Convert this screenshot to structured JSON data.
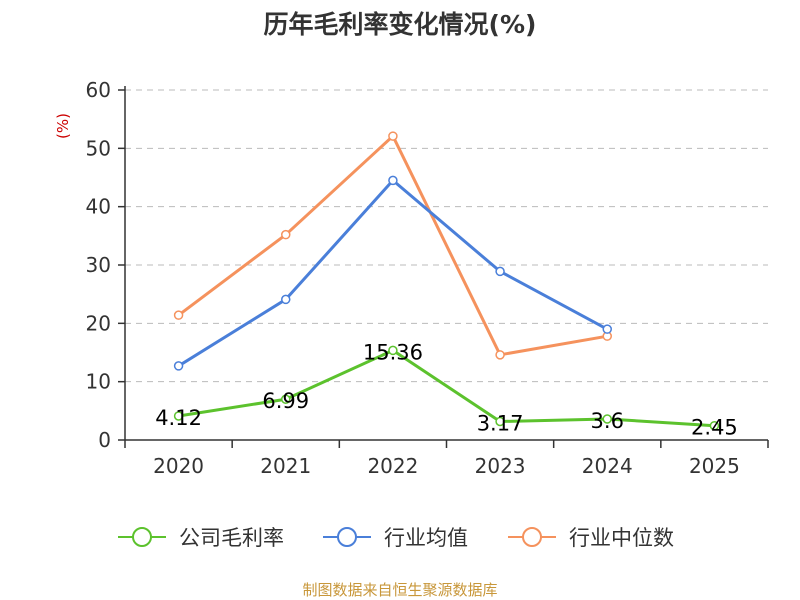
{
  "chart_data": {
    "type": "line",
    "title": "历年毛利率变化情况(%)",
    "ylabel": "(%)",
    "xlabel": "",
    "ylim": [
      0,
      60
    ],
    "yticks": [
      0,
      10,
      20,
      30,
      40,
      50,
      60
    ],
    "categories": [
      "2020",
      "2021",
      "2022",
      "2023",
      "2024",
      "2025"
    ],
    "grid": true,
    "legend_position": "bottom",
    "series": [
      {
        "name": "公司毛利率",
        "color": "#5cc22d",
        "values": [
          4.12,
          6.99,
          15.36,
          3.17,
          3.6,
          2.45
        ],
        "labels": [
          "4.12",
          "6.99",
          "15.36",
          "3.17",
          "3.6",
          "2.45"
        ]
      },
      {
        "name": "行业均值",
        "color": "#4a7fd9",
        "values": [
          12.7,
          24.1,
          44.5,
          28.9,
          19.0,
          null
        ]
      },
      {
        "name": "行业中位数",
        "color": "#f5925d",
        "values": [
          21.4,
          35.2,
          52.1,
          14.6,
          17.8,
          null
        ]
      }
    ],
    "source": "制图数据来自恒生聚源数据库",
    "colors": {
      "axis": "#333333",
      "grid": "#bbbbbb",
      "title": "#333333",
      "ylabel": "#cc0000",
      "source": "#c8973a"
    }
  }
}
